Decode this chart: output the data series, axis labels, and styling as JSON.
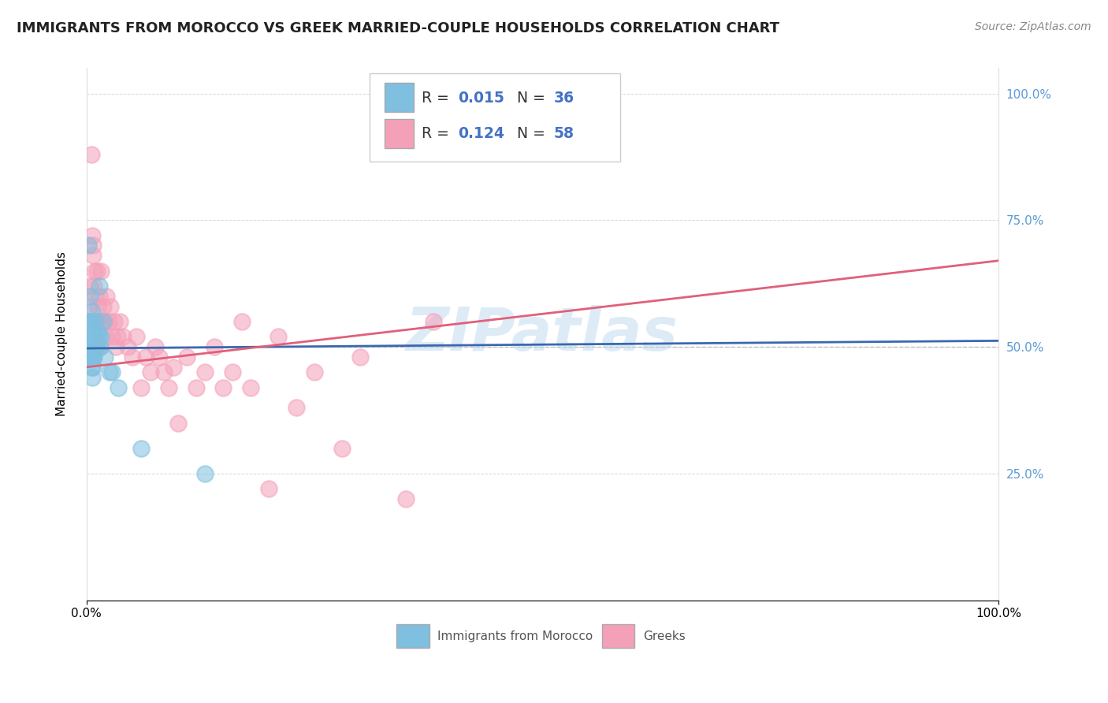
{
  "title": "IMMIGRANTS FROM MOROCCO VS GREEK MARRIED-COUPLE HOUSEHOLDS CORRELATION CHART",
  "source": "Source: ZipAtlas.com",
  "ylabel": "Married-couple Households",
  "legend_label1": "Immigrants from Morocco",
  "legend_label2": "Greeks",
  "r1": 0.015,
  "n1": 36,
  "r2": 0.124,
  "n2": 58,
  "blue_color": "#7fbfdf",
  "pink_color": "#f4a0b8",
  "blue_line_color": "#3a68b0",
  "pink_line_color": "#e0607a",
  "grid_color": "#cccccc",
  "watermark": "ZIPatlas",
  "blue_scatter_x": [
    0.002,
    0.002,
    0.003,
    0.003,
    0.004,
    0.004,
    0.005,
    0.005,
    0.005,
    0.006,
    0.006,
    0.007,
    0.007,
    0.007,
    0.008,
    0.008,
    0.008,
    0.009,
    0.009,
    0.01,
    0.01,
    0.011,
    0.012,
    0.013,
    0.014,
    0.015,
    0.016,
    0.018,
    0.02,
    0.025,
    0.028,
    0.035,
    0.06,
    0.13,
    0.005,
    0.006
  ],
  "blue_scatter_y": [
    0.7,
    0.55,
    0.55,
    0.48,
    0.6,
    0.52,
    0.55,
    0.5,
    0.48,
    0.57,
    0.52,
    0.5,
    0.48,
    0.46,
    0.52,
    0.5,
    0.48,
    0.52,
    0.49,
    0.55,
    0.5,
    0.5,
    0.53,
    0.52,
    0.62,
    0.5,
    0.52,
    0.55,
    0.48,
    0.45,
    0.45,
    0.42,
    0.3,
    0.25,
    0.46,
    0.44
  ],
  "pink_scatter_x": [
    0.005,
    0.006,
    0.007,
    0.008,
    0.009,
    0.01,
    0.01,
    0.011,
    0.012,
    0.013,
    0.014,
    0.015,
    0.016,
    0.017,
    0.018,
    0.02,
    0.021,
    0.022,
    0.024,
    0.026,
    0.028,
    0.03,
    0.032,
    0.034,
    0.036,
    0.04,
    0.045,
    0.05,
    0.055,
    0.06,
    0.065,
    0.07,
    0.075,
    0.08,
    0.085,
    0.09,
    0.095,
    0.1,
    0.11,
    0.12,
    0.13,
    0.14,
    0.15,
    0.16,
    0.17,
    0.18,
    0.2,
    0.21,
    0.23,
    0.25,
    0.28,
    0.3,
    0.35,
    0.38,
    0.007,
    0.003,
    0.004,
    0.015
  ],
  "pink_scatter_y": [
    0.88,
    0.72,
    0.68,
    0.62,
    0.65,
    0.6,
    0.55,
    0.65,
    0.58,
    0.55,
    0.6,
    0.55,
    0.65,
    0.55,
    0.58,
    0.55,
    0.52,
    0.6,
    0.55,
    0.58,
    0.52,
    0.55,
    0.5,
    0.52,
    0.55,
    0.52,
    0.5,
    0.48,
    0.52,
    0.42,
    0.48,
    0.45,
    0.5,
    0.48,
    0.45,
    0.42,
    0.46,
    0.35,
    0.48,
    0.42,
    0.45,
    0.5,
    0.42,
    0.45,
    0.55,
    0.42,
    0.22,
    0.52,
    0.38,
    0.45,
    0.3,
    0.48,
    0.2,
    0.55,
    0.7,
    0.58,
    0.62,
    0.5
  ],
  "xlim": [
    0.0,
    1.0
  ],
  "ylim": [
    0.0,
    1.05
  ],
  "yticks": [
    0.25,
    0.5,
    0.75,
    1.0
  ],
  "ytick_labels": [
    "25.0%",
    "50.0%",
    "75.0%",
    "100.0%"
  ],
  "title_fontsize": 13,
  "source_fontsize": 10,
  "blue_line_x": [
    0.0,
    1.0
  ],
  "blue_line_y": [
    0.497,
    0.512
  ],
  "pink_line_x": [
    0.0,
    1.0
  ],
  "pink_line_y": [
    0.46,
    0.67
  ]
}
